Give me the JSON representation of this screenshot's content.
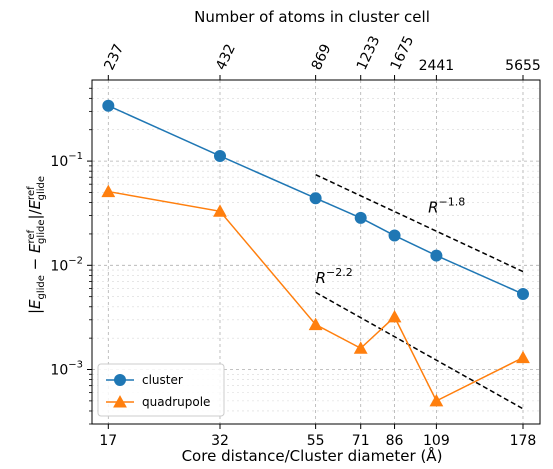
{
  "chart_data": {
    "type": "line",
    "xlabel": "Core distance/Cluster diameter (Å)",
    "ylabel": "|E_glide − E_glide^ref|/E_glide^ref",
    "ylabel_parts": {
      "e1": "E",
      "s1": "glide",
      "e2": "E",
      "sup2": "ref",
      "sub2": "glide",
      "e3": "E",
      "sup3": "ref",
      "sub3": "glide"
    },
    "top_xlabel": "Number of atoms in cluster cell",
    "x_scale": "log",
    "y_scale": "log",
    "xlim": [
      15.5,
      196
    ],
    "ylim": [
      0.0003,
      0.6
    ],
    "x_ticks": [
      17,
      32,
      55,
      71,
      86,
      109,
      178
    ],
    "x_tick_labels": [
      "17",
      "32",
      "55",
      "71",
      "86",
      "109",
      "178"
    ],
    "top_ticks": [
      17,
      32,
      55,
      71,
      86,
      109,
      178
    ],
    "top_tick_labels": [
      "237",
      "432",
      "869",
      "1233",
      "1675",
      "2441",
      "5655"
    ],
    "y_ticks": [
      0.001,
      0.01,
      0.1
    ],
    "y_tick_labels": [
      {
        "base": "10",
        "exp": "−3"
      },
      {
        "base": "10",
        "exp": "−2"
      },
      {
        "base": "10",
        "exp": "−1"
      }
    ],
    "grid": true,
    "legend_position": "lower-left",
    "series": [
      {
        "name": "cluster",
        "color": "#1f77b4",
        "marker": "circle",
        "x": [
          17,
          32,
          55,
          71,
          86,
          109,
          178
        ],
        "y": [
          0.34,
          0.112,
          0.044,
          0.0285,
          0.0193,
          0.0124,
          0.0053
        ]
      },
      {
        "name": "quadrupole",
        "color": "#ff7f0e",
        "marker": "triangle",
        "x": [
          17,
          32,
          55,
          71,
          86,
          109,
          178
        ],
        "y": [
          0.051,
          0.033,
          0.0027,
          0.0016,
          0.0032,
          0.0005,
          0.0013
        ]
      }
    ],
    "reference_lines": [
      {
        "label_base": "R",
        "label_exp": "−1.8",
        "x": [
          55,
          178
        ],
        "y": [
          0.074,
          0.0087
        ],
        "label_x": 104,
        "label_y": 0.032
      },
      {
        "label_base": "R",
        "label_exp": "−2.2",
        "x": [
          55,
          178
        ],
        "y": [
          0.0055,
          0.00042
        ],
        "label_x": 55,
        "label_y": 0.0068
      }
    ]
  }
}
